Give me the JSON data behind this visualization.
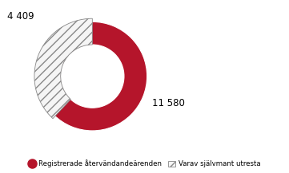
{
  "total": 11580,
  "voluntary": 4409,
  "main_color": "#b5152b",
  "hatch_facecolor": "#f5f5f5",
  "hatch_edgecolor": "#888888",
  "hatch_pattern": "///",
  "label_total": "11 580",
  "label_voluntary": "4 409",
  "legend_label_main": "Registrerade återvändandeärenden",
  "legend_label_hatch": "Varav självmant utresta",
  "background_color": "#ffffff",
  "wedge_linewidth": 0.8,
  "wedge_linecolor": "#ffffff"
}
